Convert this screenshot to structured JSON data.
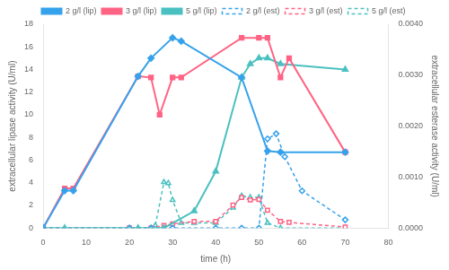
{
  "chart_data": {
    "type": "line",
    "xlabel": "time (h)",
    "ylabel": "extracellular lipase activity (U/ml)",
    "y2label": "extracellular esterase activity (U/ml)",
    "xlim": [
      0,
      80
    ],
    "xticks": [
      0,
      10,
      20,
      30,
      40,
      50,
      60,
      70,
      80
    ],
    "ylim": [
      0,
      18
    ],
    "yticks": [
      0,
      2,
      4,
      6,
      8,
      10,
      12,
      14,
      16,
      18
    ],
    "y2lim": [
      0,
      0.004
    ],
    "y2ticks": [
      {
        "value": 0,
        "label": "0.0000"
      },
      {
        "value": 0.001,
        "label": "0.0010"
      },
      {
        "value": 0.002,
        "label": "0.0020"
      },
      {
        "value": 0.003,
        "label": "0.0030"
      },
      {
        "value": 0.004,
        "label": "0.0040"
      }
    ],
    "grid": false,
    "legend": "top",
    "series": [
      {
        "name": "2 g/l (lip)",
        "x": [
          0,
          5,
          7,
          22,
          25,
          30,
          32,
          46,
          52,
          55,
          70
        ],
        "values": [
          0,
          3.3,
          3.3,
          13.4,
          15.0,
          16.8,
          16.5,
          13.3,
          6.8,
          6.7,
          6.7
        ],
        "marker": "diamond",
        "line_style": "solid"
      },
      {
        "name": "3 g/l (lip)",
        "x": [
          0,
          5,
          7,
          22,
          25,
          27,
          30,
          32,
          46,
          50,
          52,
          55,
          57,
          70
        ],
        "values": [
          0,
          3.5,
          3.5,
          13.4,
          13.3,
          10.0,
          13.3,
          13.3,
          16.8,
          16.8,
          16.8,
          13.3,
          15.0,
          6.7
        ],
        "marker": "square",
        "line_style": "solid"
      },
      {
        "name": "5 g/l (lip)",
        "x": [
          0,
          5,
          22,
          28,
          35,
          40,
          46,
          48,
          50,
          52,
          55,
          70
        ],
        "values": [
          0,
          0.0,
          0.0,
          0.0,
          1.5,
          5.0,
          13.3,
          14.5,
          15.0,
          15.0,
          14.5,
          14.0
        ],
        "marker": "triangle",
        "line_style": "solid"
      },
      {
        "name": "2 g/l (est)",
        "axis": "y2",
        "x": [
          0,
          20,
          25,
          30,
          40,
          46,
          50,
          52,
          54,
          56,
          60,
          70
        ],
        "values": [
          0,
          0,
          0,
          0,
          0,
          0,
          0,
          0.00175,
          0.00185,
          0.0014,
          0.00073,
          0.00016
        ],
        "marker": "diamond",
        "line_style": "dashed"
      },
      {
        "name": "3 g/l (est)",
        "axis": "y2",
        "x": [
          0,
          20,
          25,
          28,
          30,
          35,
          40,
          44,
          46,
          48,
          50,
          52,
          55,
          57,
          70
        ],
        "values": [
          0,
          0,
          0,
          5e-05,
          8e-05,
          0.00013,
          0.00013,
          0.00045,
          0.0006,
          0.00055,
          0.00056,
          0.00035,
          0.00013,
          0.00011,
          2e-05
        ],
        "marker": "square",
        "line_style": "dashed"
      },
      {
        "name": "5 g/l (est)",
        "axis": "y2",
        "x": [
          0,
          20,
          25,
          26,
          28,
          29,
          30,
          32,
          35,
          40,
          44,
          46,
          48,
          50,
          52,
          55,
          70
        ],
        "values": [
          0,
          0,
          0,
          5e-05,
          0.0009,
          0.00088,
          0.00055,
          0.0001,
          0.0001,
          0.0001,
          0.0004,
          0.00063,
          0.0006,
          0.0006,
          0.0001,
          0.0,
          0.0
        ],
        "marker": "triangle",
        "line_style": "dashed"
      }
    ]
  }
}
